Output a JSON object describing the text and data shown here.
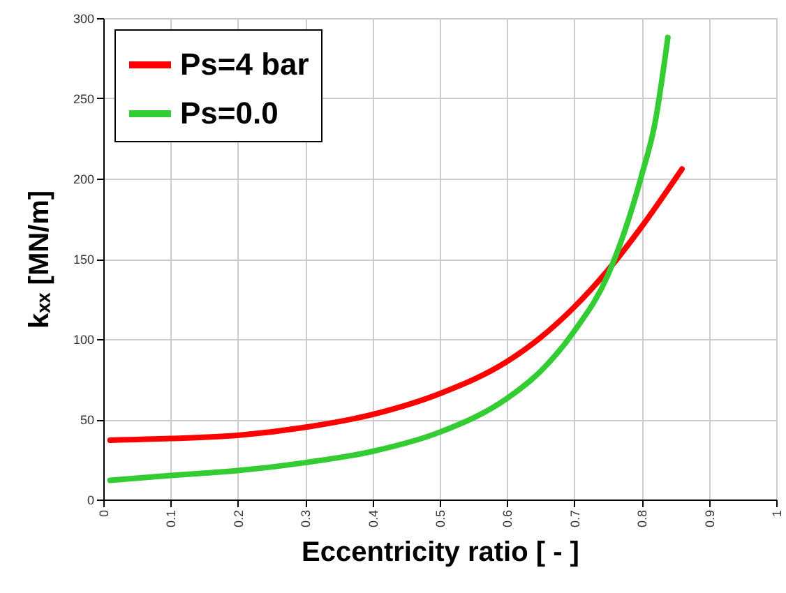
{
  "chart_data": {
    "type": "line",
    "xlabel": "Eccentricity ratio [ - ]",
    "ylabel": "kₓₓ [MN/m]",
    "xlim": [
      0,
      1
    ],
    "xticks": [
      0,
      0.1,
      0.2,
      0.3,
      0.4,
      0.5,
      0.6,
      0.7,
      0.8,
      0.9,
      1
    ],
    "ylim": [
      0,
      300
    ],
    "yticks": [
      0,
      50,
      100,
      150,
      200,
      250,
      300
    ],
    "grid": true,
    "legend": "top left",
    "marker": "none",
    "line_style": "solid",
    "series": [
      {
        "name": "Ps=4 bar",
        "color": "#ff0000",
        "x": [
          0.01,
          0.1,
          0.2,
          0.3,
          0.4,
          0.5,
          0.6,
          0.65,
          0.7,
          0.75,
          0.8,
          0.86
        ],
        "values": [
          37,
          38,
          40,
          45,
          53,
          66,
          86,
          101,
          120,
          143,
          170,
          206
        ]
      },
      {
        "name": "Ps=0.0",
        "color": "#33cc33",
        "x": [
          0.01,
          0.1,
          0.2,
          0.3,
          0.4,
          0.5,
          0.6,
          0.65,
          0.7,
          0.75,
          0.8,
          0.82,
          0.839
        ],
        "values": [
          12,
          15,
          18,
          23,
          30,
          42,
          63,
          80,
          105,
          140,
          202,
          235,
          288
        ]
      }
    ]
  }
}
